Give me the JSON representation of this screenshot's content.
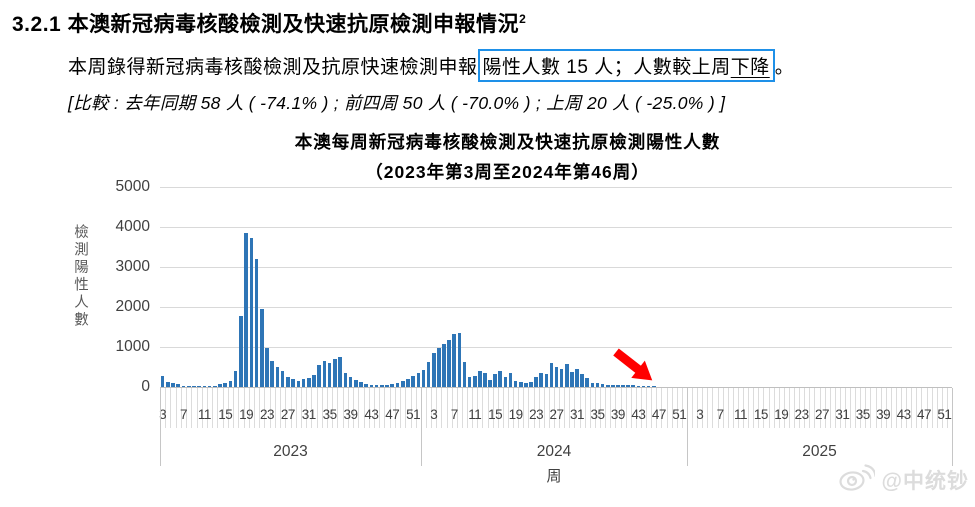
{
  "document": {
    "section_number": "3.2.1",
    "heading": "本澳新冠病毒核酸檢測及快速抗原檢測申報情況",
    "heading_superscript": "2",
    "body_prefix": "本周錄得新冠病毒核酸檢測及抗原快速檢測申報",
    "highlight_text": "陽性人數 15 人；人數較上周",
    "highlight_underlined": "下降",
    "body_suffix": "。",
    "comparison_line": "[比較 : 去年同期 58 人 ( -74.1% ) ; 前四周 50 人 ( -70.0% ) ; 上周 20 人 ( -25.0% ) ]"
  },
  "colors": {
    "bar": "#2E75B6",
    "highlight_box_border": "#1E90E8",
    "gridline": "#D9D9D9",
    "axis_text": "#404040",
    "arrow": "#FF0000",
    "watermark": "#DCDCDC"
  },
  "watermark": {
    "icon": "weibo-icon",
    "text": "@中统钞"
  },
  "chart_data": {
    "type": "bar",
    "title": "本澳每周新冠病毒核酸檢測及快速抗原檢測陽性人數",
    "subtitle": "（2023年第3周至2024年第46周）",
    "ylabel": "檢測陽性人數",
    "xlabel": "周",
    "ylim": [
      0,
      5000
    ],
    "yticks": [
      0,
      1000,
      2000,
      3000,
      4000,
      5000
    ],
    "grid": true,
    "legend": "none",
    "x_tick_labels_per_year": [
      "3",
      "7",
      "11",
      "15",
      "19",
      "23",
      "27",
      "31",
      "35",
      "39",
      "43",
      "47",
      "51"
    ],
    "year_groups": [
      {
        "year": "2023",
        "start_week": 3,
        "total_slots": 50,
        "values": [
          270,
          120,
          95,
          85,
          30,
          15,
          10,
          10,
          15,
          20,
          30,
          70,
          90,
          160,
          390,
          1780,
          3840,
          3730,
          3190,
          1940,
          970,
          650,
          510,
          410,
          260,
          200,
          155,
          200,
          235,
          300,
          560,
          650,
          600,
          690,
          740,
          360,
          240,
          175,
          120,
          85,
          60,
          45,
          40,
          58,
          75,
          110,
          160,
          200,
          275,
          355
        ]
      },
      {
        "year": "2024",
        "start_week": 1,
        "total_slots": 52,
        "values": [
          430,
          620,
          860,
          970,
          1080,
          1180,
          1320,
          1360,
          630,
          260,
          275,
          400,
          360,
          175,
          320,
          410,
          260,
          360,
          160,
          120,
          95,
          135,
          260,
          360,
          320,
          590,
          490,
          440,
          565,
          385,
          440,
          325,
          215,
          110,
          90,
          70,
          60,
          55,
          50,
          50,
          45,
          50,
          35,
          25,
          20,
          15
        ]
      },
      {
        "year": "2025",
        "start_week": 1,
        "total_slots": 52,
        "values": []
      }
    ],
    "annotation": {
      "type": "arrow",
      "points_to": "2024 week 46",
      "color": "#FF0000"
    }
  }
}
